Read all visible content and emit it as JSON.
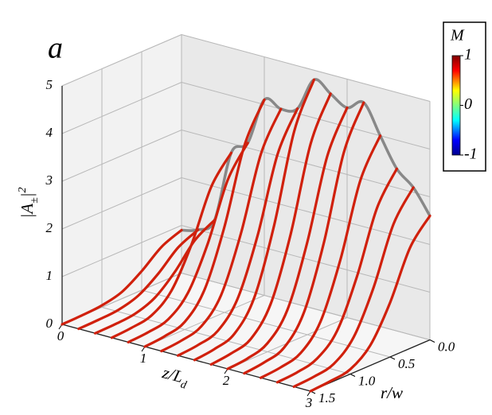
{
  "chart_data": {
    "type": "waterfall3d",
    "panel_label": "a",
    "ylabel": [
      "|A",
      "±",
      "|",
      "2"
    ],
    "xlabel": [
      "z/L",
      "d"
    ],
    "rlabel": "r/w",
    "r": [
      0,
      0.25,
      0.5,
      0.75,
      1.0,
      1.25,
      1.5
    ],
    "z": [
      0,
      0.2,
      0.4,
      0.6,
      0.8,
      1.0,
      1.2,
      1.4,
      1.6,
      1.8,
      2.0,
      2.2,
      2.4,
      2.6,
      2.8,
      3.0
    ],
    "values": [
      [
        0.9,
        0.73,
        0.4,
        0.14,
        0.04,
        0.01,
        0
      ],
      [
        1.0,
        0.81,
        0.44,
        0.16,
        0.04,
        0.01,
        0
      ],
      [
        1.3,
        1.05,
        0.57,
        0.21,
        0.05,
        0.01,
        0
      ],
      [
        2.8,
        2.27,
        1.23,
        0.45,
        0.11,
        0.03,
        0
      ],
      [
        3.1,
        2.51,
        1.36,
        0.5,
        0.12,
        0.03,
        0
      ],
      [
        4.1,
        3.32,
        1.8,
        0.66,
        0.16,
        0.04,
        0
      ],
      [
        4.0,
        3.24,
        1.76,
        0.64,
        0.16,
        0.04,
        0
      ],
      [
        4.1,
        3.32,
        1.8,
        0.66,
        0.16,
        0.04,
        0
      ],
      [
        4.8,
        3.89,
        2.11,
        0.77,
        0.19,
        0.05,
        0
      ],
      [
        4.6,
        3.73,
        2.02,
        0.74,
        0.18,
        0.05,
        0
      ],
      [
        4.4,
        3.56,
        1.94,
        0.7,
        0.18,
        0.04,
        0
      ],
      [
        4.6,
        3.73,
        2.02,
        0.74,
        0.18,
        0.05,
        0
      ],
      [
        4.0,
        3.24,
        1.76,
        0.64,
        0.16,
        0.04,
        0
      ],
      [
        3.4,
        2.75,
        1.5,
        0.54,
        0.14,
        0.03,
        0
      ],
      [
        3.1,
        2.51,
        1.36,
        0.5,
        0.12,
        0.03,
        0
      ],
      [
        2.6,
        2.11,
        1.14,
        0.42,
        0.1,
        0.03,
        0
      ]
    ],
    "color": "#d0200c",
    "envelope_color": "#888888",
    "xlim": [
      0,
      3
    ],
    "xticks": [
      0,
      1,
      2,
      3
    ],
    "rlim": [
      0,
      1.5
    ],
    "rticks": [
      {
        "value": 0,
        "label": "0.0"
      },
      0.5,
      {
        "value": 1,
        "label": "1.0"
      },
      1.5
    ],
    "ylim": [
      0,
      5
    ],
    "yticks": [
      0,
      1,
      2,
      3,
      4,
      5
    ],
    "colorbar": {
      "label": "M",
      "clim": [
        -1,
        1
      ],
      "ticks": [
        1,
        0,
        -1
      ]
    },
    "grid": true
  }
}
